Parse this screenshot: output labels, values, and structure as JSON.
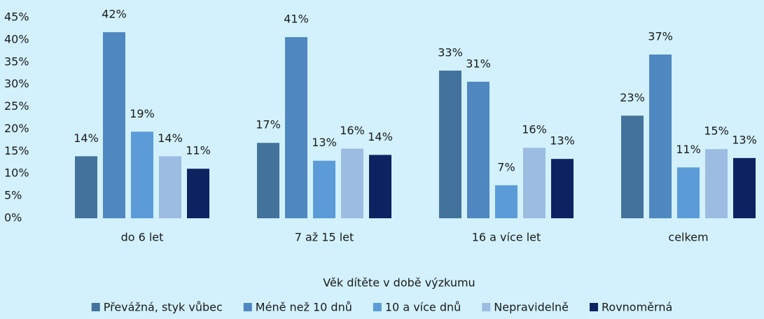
{
  "chart_data": {
    "type": "bar",
    "x_label": "Věk dítěte v době výzkumu",
    "categories": [
      "do 6 let",
      "7 až 15 let",
      "16 a více let",
      "celkem"
    ],
    "series": [
      {
        "name": "Převážná, styk vůbec",
        "color": "#43729d",
        "values": [
          13.9,
          16.9,
          33.1,
          23.0
        ],
        "value_labels": [
          "14%",
          "17%",
          "33%",
          "23%"
        ]
      },
      {
        "name": "Méně než 10 dnů",
        "color": "#4f87c0",
        "values": [
          41.7,
          40.6,
          30.6,
          36.7
        ],
        "value_labels": [
          "42%",
          "41%",
          "31%",
          "37%"
        ]
      },
      {
        "name": "10 a více dnů",
        "color": "#5b9cd8",
        "values": [
          19.4,
          12.9,
          7.4,
          11.4
        ],
        "value_labels": [
          "19%",
          "13%",
          "7%",
          "11%"
        ]
      },
      {
        "name": "Nepravidelně",
        "color": "#9dbce2",
        "values": [
          13.9,
          15.6,
          15.8,
          15.5
        ],
        "value_labels": [
          "14%",
          "16%",
          "16%",
          "15%"
        ]
      },
      {
        "name": "Rovnoměrná",
        "color": "#0b2461",
        "values": [
          11.1,
          14.2,
          13.3,
          13.5
        ],
        "value_labels": [
          "11%",
          "14%",
          "13%",
          "13%"
        ]
      }
    ],
    "ylim": [
      0,
      45
    ],
    "yticks": [
      {
        "value": 0,
        "label": "0%"
      },
      {
        "value": 5,
        "label": "5%"
      },
      {
        "value": 10,
        "label": "10%"
      },
      {
        "value": 15,
        "label": "15%"
      },
      {
        "value": 20,
        "label": "20%"
      },
      {
        "value": 25,
        "label": "25%"
      },
      {
        "value": 30,
        "label": "30%"
      },
      {
        "value": 35,
        "label": "35%"
      },
      {
        "value": 40,
        "label": "40%"
      },
      {
        "value": 45,
        "label": "45%"
      }
    ],
    "legend": "bottom"
  }
}
